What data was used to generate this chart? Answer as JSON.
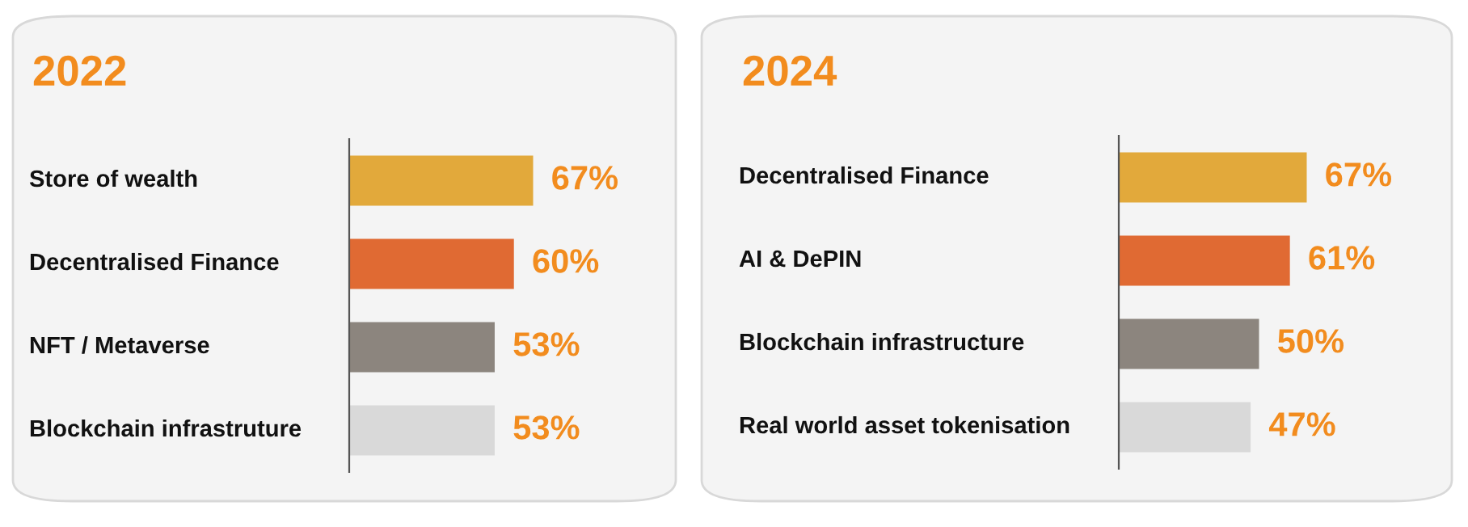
{
  "chart_data": [
    {
      "type": "bar",
      "orientation": "horizontal",
      "title": "2022",
      "categories": [
        "Store of wealth",
        "Decentralised Finance",
        "NFT / Metaverse",
        "Blockchain infrastruture"
      ],
      "values": [
        67,
        60,
        53,
        53
      ],
      "colors": [
        "#e2a93b",
        "#e06a33",
        "#8c857e",
        "#d9d9d9"
      ],
      "value_labels": [
        "67%",
        "60%",
        "53%",
        "53%"
      ],
      "tick_labels": "y"
    },
    {
      "type": "bar",
      "orientation": "horizontal",
      "title": "2024",
      "categories": [
        "Decentralised Finance",
        "AI & DePIN",
        "Blockchain infrastructure",
        "Real world asset tokenisation"
      ],
      "values": [
        67,
        61,
        50,
        47
      ],
      "colors": [
        "#e2a93b",
        "#e06a33",
        "#8c857e",
        "#d9d9d9"
      ],
      "value_labels": [
        "67%",
        "61%",
        "50%",
        "47%"
      ],
      "tick_labels": "y"
    }
  ]
}
